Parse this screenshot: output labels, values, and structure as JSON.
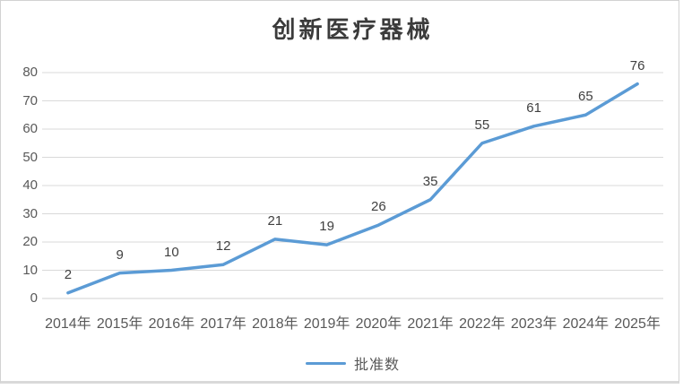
{
  "chart_data": {
    "type": "line",
    "title": "创新医疗器械",
    "categories": [
      "2014年",
      "2015年",
      "2016年",
      "2017年",
      "2018年",
      "2019年",
      "2020年",
      "2021年",
      "2022年",
      "2023年",
      "2024年",
      "2025年"
    ],
    "series": [
      {
        "name": "批准数",
        "values": [
          2,
          9,
          10,
          12,
          21,
          19,
          26,
          35,
          55,
          61,
          65,
          76
        ],
        "color": "#5B9BD5"
      }
    ],
    "xlabel": "",
    "ylabel": "",
    "ylim": [
      0,
      80
    ],
    "ytick_step": 10,
    "yticks": [
      0,
      10,
      20,
      30,
      40,
      50,
      60,
      70,
      80
    ],
    "grid": true,
    "gridline_color": "#d9d9d9",
    "axis_line_color": "#d0d0d0",
    "data_labels": true,
    "data_label_color": "#404040",
    "tick_label_color": "#595959",
    "title_color": "#3b3b3b",
    "legend_position": "bottom"
  }
}
